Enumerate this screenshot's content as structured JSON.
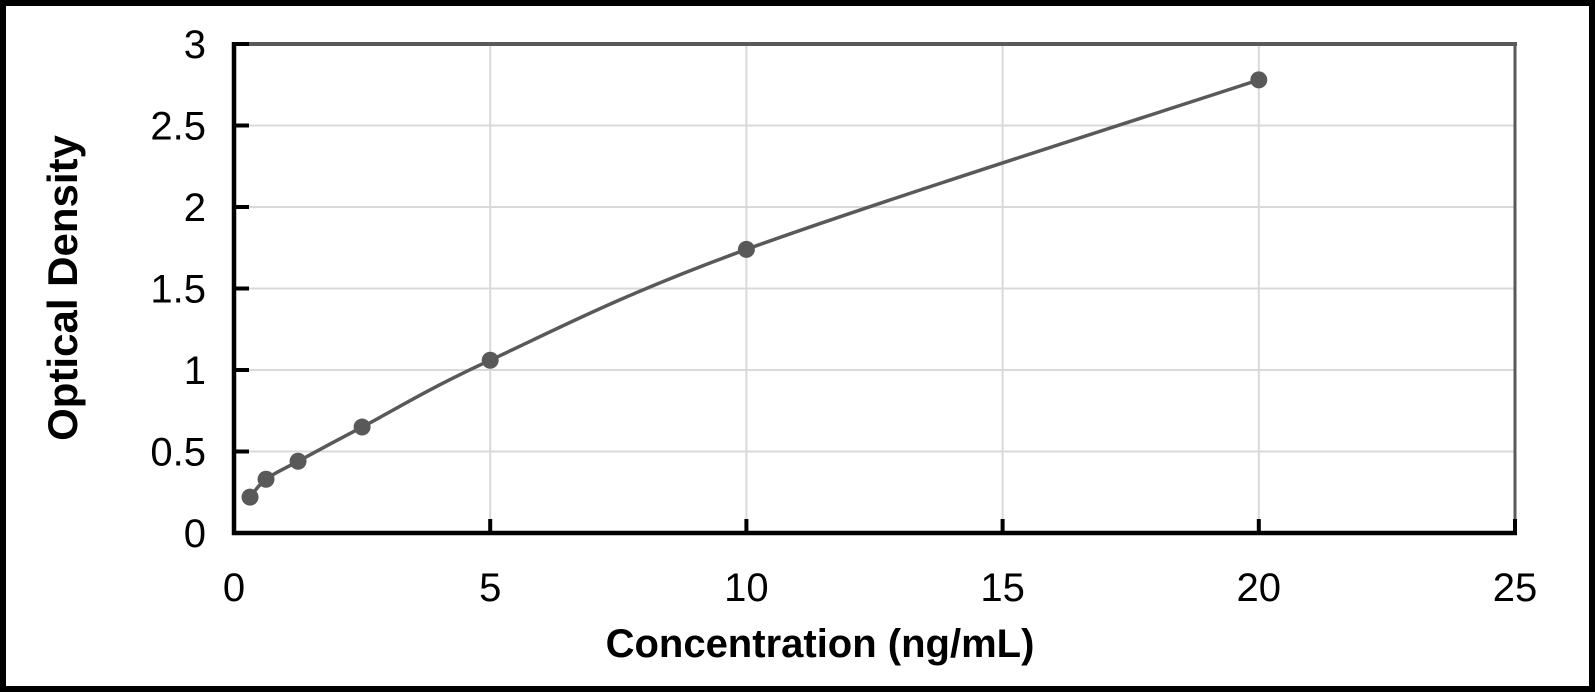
{
  "figure": {
    "background_color": "#ffffff",
    "frame_color": "#000000"
  },
  "chart_data": {
    "type": "scatter",
    "title": "",
    "xlabel": "Concentration (ng/mL)",
    "ylabel": "Optical Density",
    "x": [
      0.313,
      0.625,
      1.25,
      2.5,
      5,
      10,
      20
    ],
    "y": [
      0.22,
      0.33,
      0.44,
      0.65,
      1.06,
      1.74,
      2.78
    ],
    "xlim": [
      0,
      25
    ],
    "ylim": [
      0,
      3
    ],
    "x_ticks": [
      0,
      5,
      10,
      15,
      20,
      25
    ],
    "x_tick_labels": [
      "0",
      "5",
      "10",
      "15",
      "20",
      "25"
    ],
    "y_ticks": [
      0,
      0.5,
      1,
      1.5,
      2,
      2.5,
      3
    ],
    "y_tick_labels": [
      "0",
      "0.5",
      "1",
      "1.5",
      "2",
      "2.5",
      "3"
    ],
    "grid": true,
    "legend": false,
    "line_style": "smooth",
    "marker_style": "circle",
    "colors": {
      "line": "#595959",
      "marker": "#595959",
      "gridline": "#d9d9d9",
      "axis": "#000000",
      "plot_border": "#595959",
      "text": "#000000"
    }
  }
}
